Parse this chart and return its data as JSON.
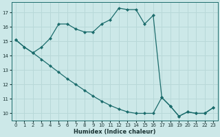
{
  "xlabel": "Humidex (Indice chaleur)",
  "bg_color": "#cce8e8",
  "grid_color": "#b8d8d8",
  "line_color": "#1a6b6b",
  "xlim": [
    -0.5,
    23.5
  ],
  "ylim": [
    9.5,
    17.7
  ],
  "xticks": [
    0,
    1,
    2,
    3,
    4,
    5,
    6,
    7,
    8,
    9,
    10,
    11,
    12,
    13,
    14,
    15,
    16,
    17,
    18,
    19,
    20,
    21,
    22,
    23
  ],
  "yticks": [
    10,
    11,
    12,
    13,
    14,
    15,
    16,
    17
  ],
  "upper_x": [
    0,
    1,
    2,
    3,
    4,
    5,
    6,
    7,
    8,
    9,
    10,
    11,
    12,
    13,
    14,
    15,
    16,
    17,
    18,
    19,
    20,
    21,
    22,
    23
  ],
  "upper_y": [
    15.1,
    14.6,
    14.2,
    14.6,
    15.2,
    16.2,
    16.2,
    15.85,
    15.65,
    15.65,
    16.2,
    16.5,
    17.3,
    17.2,
    17.2,
    16.2,
    16.8,
    11.1,
    10.5,
    9.8,
    10.1,
    10.0,
    10.0,
    10.4
  ],
  "lower_x": [
    0,
    1,
    2,
    3,
    4,
    5,
    6,
    7,
    8,
    9,
    10,
    11,
    12,
    13,
    14,
    15,
    16,
    17,
    18,
    19,
    20,
    21,
    22,
    23
  ],
  "lower_y": [
    15.1,
    14.6,
    14.2,
    13.75,
    13.3,
    12.85,
    12.4,
    12.0,
    11.6,
    11.2,
    10.85,
    10.55,
    10.3,
    10.1,
    10.0,
    10.0,
    10.0,
    11.1,
    10.5,
    9.8,
    10.1,
    10.0,
    10.0,
    10.4
  ]
}
